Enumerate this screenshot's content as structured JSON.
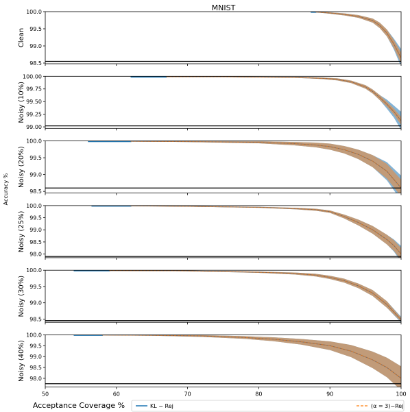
{
  "figure": {
    "title": "MNIST",
    "xlabel": "Acceptance Coverage %",
    "ylabel": "Accuracy %"
  },
  "legend": {
    "placement": "bottom",
    "entries": [
      {
        "label": "KL − Rej",
        "color": "#1f77b4",
        "style": "solid"
      },
      {
        "label": "(α = 3)−Rej",
        "color": "#ff7f0e",
        "style": "dashed"
      }
    ]
  },
  "colors": {
    "kl": "#1f77b4",
    "alpha": "#ff7f0e",
    "overlap": "#c49a74",
    "baseline": "#000000"
  },
  "chart_data": [
    {
      "type": "line",
      "name": "Clean",
      "ylabel": "Clean",
      "xlim": [
        50,
        100
      ],
      "ylim": [
        98.48,
        100.0
      ],
      "yticks": [
        100.0,
        99.5,
        99.0,
        98.5
      ],
      "ytick_labels": [
        "100.0",
        "99.5",
        "99.0",
        "98.5"
      ],
      "xticks": [
        50,
        60,
        70,
        80,
        90,
        100
      ],
      "baseline": 98.55,
      "kl_start": 87.3,
      "alpha_start": 88.0,
      "x": [
        88,
        90,
        92,
        94,
        96,
        97,
        98,
        99,
        100
      ],
      "y": [
        99.99,
        99.96,
        99.92,
        99.86,
        99.74,
        99.6,
        99.38,
        99.05,
        98.65
      ],
      "band": [
        0.01,
        0.02,
        0.03,
        0.04,
        0.06,
        0.08,
        0.1,
        0.12,
        0.16
      ],
      "kl_extra_band": [
        0,
        0,
        0,
        0,
        0,
        0,
        0,
        0.04,
        0.1
      ]
    },
    {
      "type": "line",
      "name": "Noisy (10%)",
      "ylabel": "Noisy (10%)",
      "xlim": [
        50,
        100
      ],
      "ylim": [
        98.97,
        100.0
      ],
      "yticks": [
        100.0,
        99.75,
        99.5,
        99.25,
        99.0
      ],
      "ytick_labels": [
        "100.00",
        "99.75",
        "99.50",
        "99.25",
        "99.00"
      ],
      "xticks": [
        50,
        60,
        70,
        80,
        90,
        100
      ],
      "baseline": 99.02,
      "kl_start": 62.0,
      "alpha_start": 67.0,
      "x": [
        67,
        75,
        85,
        89,
        91,
        93,
        95,
        96,
        97,
        98,
        99,
        100
      ],
      "y": [
        99.99,
        99.99,
        99.98,
        99.96,
        99.94,
        99.89,
        99.79,
        99.7,
        99.58,
        99.45,
        99.3,
        99.12
      ],
      "band": [
        0.005,
        0.005,
        0.01,
        0.015,
        0.02,
        0.025,
        0.035,
        0.04,
        0.05,
        0.05,
        0.06,
        0.08
      ],
      "kl_extra_band": [
        0,
        0,
        0,
        0,
        0,
        0,
        0,
        0,
        0,
        0.04,
        0.06,
        0.1
      ]
    },
    {
      "type": "line",
      "name": "Noisy (20%)",
      "ylabel": "Noisy (20%)",
      "xlim": [
        50,
        100
      ],
      "ylim": [
        98.45,
        100.0
      ],
      "yticks": [
        100.0,
        99.5,
        99.0,
        98.5
      ],
      "ytick_labels": [
        "100.0",
        "99.5",
        "99.0",
        "98.5"
      ],
      "xticks": [
        50,
        60,
        70,
        80,
        90,
        100
      ],
      "baseline": 98.6,
      "kl_start": 56.0,
      "alpha_start": 62.0,
      "x": [
        62,
        70,
        80,
        85,
        88,
        90,
        92,
        94,
        96,
        98,
        100
      ],
      "y": [
        99.99,
        99.98,
        99.96,
        99.92,
        99.88,
        99.83,
        99.74,
        99.6,
        99.4,
        99.1,
        98.6
      ],
      "band": [
        0.01,
        0.01,
        0.03,
        0.05,
        0.07,
        0.09,
        0.11,
        0.14,
        0.18,
        0.22,
        0.25
      ],
      "kl_extra_band": [
        0,
        0,
        0,
        0,
        0,
        0,
        0,
        0,
        0,
        0.05,
        0.12
      ]
    },
    {
      "type": "line",
      "name": "Noisy (25%)",
      "ylabel": "Noisy (25%)",
      "xlim": [
        50,
        100
      ],
      "ylim": [
        97.85,
        100.0
      ],
      "yticks": [
        100.0,
        99.5,
        99.0,
        98.5,
        98.0
      ],
      "ytick_labels": [
        "100.0",
        "99.5",
        "99.0",
        "98.5",
        "98.0"
      ],
      "xticks": [
        50,
        60,
        70,
        80,
        90,
        100
      ],
      "baseline": 97.9,
      "kl_start": 56.5,
      "alpha_start": 62.0,
      "x": [
        62,
        70,
        80,
        85,
        88,
        90,
        92,
        94,
        96,
        98,
        99,
        100
      ],
      "y": [
        99.99,
        99.97,
        99.93,
        99.88,
        99.83,
        99.75,
        99.55,
        99.3,
        99.0,
        98.6,
        98.35,
        98.0
      ],
      "band": [
        0.01,
        0.01,
        0.02,
        0.03,
        0.04,
        0.05,
        0.08,
        0.12,
        0.16,
        0.2,
        0.22,
        0.25
      ],
      "kl_extra_band": [
        0,
        0,
        0,
        0,
        0,
        0,
        0,
        0,
        0,
        0,
        0.03,
        0.08
      ]
    },
    {
      "type": "line",
      "name": "Noisy (30%)",
      "ylabel": "Noisy (30%)",
      "xlim": [
        50,
        100
      ],
      "ylim": [
        98.4,
        100.0
      ],
      "yticks": [
        100.0,
        99.5,
        99.0,
        98.5
      ],
      "ytick_labels": [
        "100.0",
        "99.5",
        "99.0",
        "98.5"
      ],
      "xticks": [
        50,
        60,
        70,
        80,
        90,
        100
      ],
      "baseline": 98.45,
      "kl_start": 54.0,
      "alpha_start": 59.0,
      "x": [
        59,
        70,
        80,
        85,
        88,
        90,
        92,
        94,
        96,
        98,
        100
      ],
      "y": [
        99.99,
        99.98,
        99.94,
        99.9,
        99.85,
        99.78,
        99.68,
        99.52,
        99.3,
        98.95,
        98.48
      ],
      "band": [
        0.01,
        0.01,
        0.02,
        0.03,
        0.04,
        0.05,
        0.06,
        0.07,
        0.09,
        0.1,
        0.06
      ],
      "kl_extra_band": [
        0,
        0,
        0,
        0,
        0,
        0,
        0,
        0,
        0,
        0,
        0.03
      ]
    },
    {
      "type": "line",
      "name": "Noisy (40%)",
      "ylabel": "Noisy (40%)",
      "xlim": [
        50,
        100
      ],
      "ylim": [
        97.6,
        100.0
      ],
      "yticks": [
        100.0,
        99.5,
        99.0,
        98.5,
        98.0
      ],
      "ytick_labels": [
        "100.0",
        "99.5",
        "99.0",
        "98.5",
        "98.0"
      ],
      "xticks": [
        50,
        60,
        70,
        80,
        90,
        100
      ],
      "xtick_labels": [
        "50",
        "60",
        "70",
        "80",
        "90",
        "100"
      ],
      "baseline": 97.75,
      "kl_start": 54.0,
      "alpha_start": 58.0,
      "x": [
        58,
        65,
        72,
        78,
        82,
        86,
        90,
        93,
        96,
        98,
        100
      ],
      "y": [
        99.99,
        99.98,
        99.95,
        99.88,
        99.8,
        99.68,
        99.5,
        99.25,
        98.85,
        98.5,
        98.0
      ],
      "band": [
        0.01,
        0.02,
        0.04,
        0.06,
        0.09,
        0.13,
        0.2,
        0.28,
        0.38,
        0.45,
        0.55
      ],
      "kl_extra_band": [
        0,
        0,
        0,
        0,
        0,
        0,
        0,
        0,
        0,
        0,
        0
      ]
    }
  ]
}
